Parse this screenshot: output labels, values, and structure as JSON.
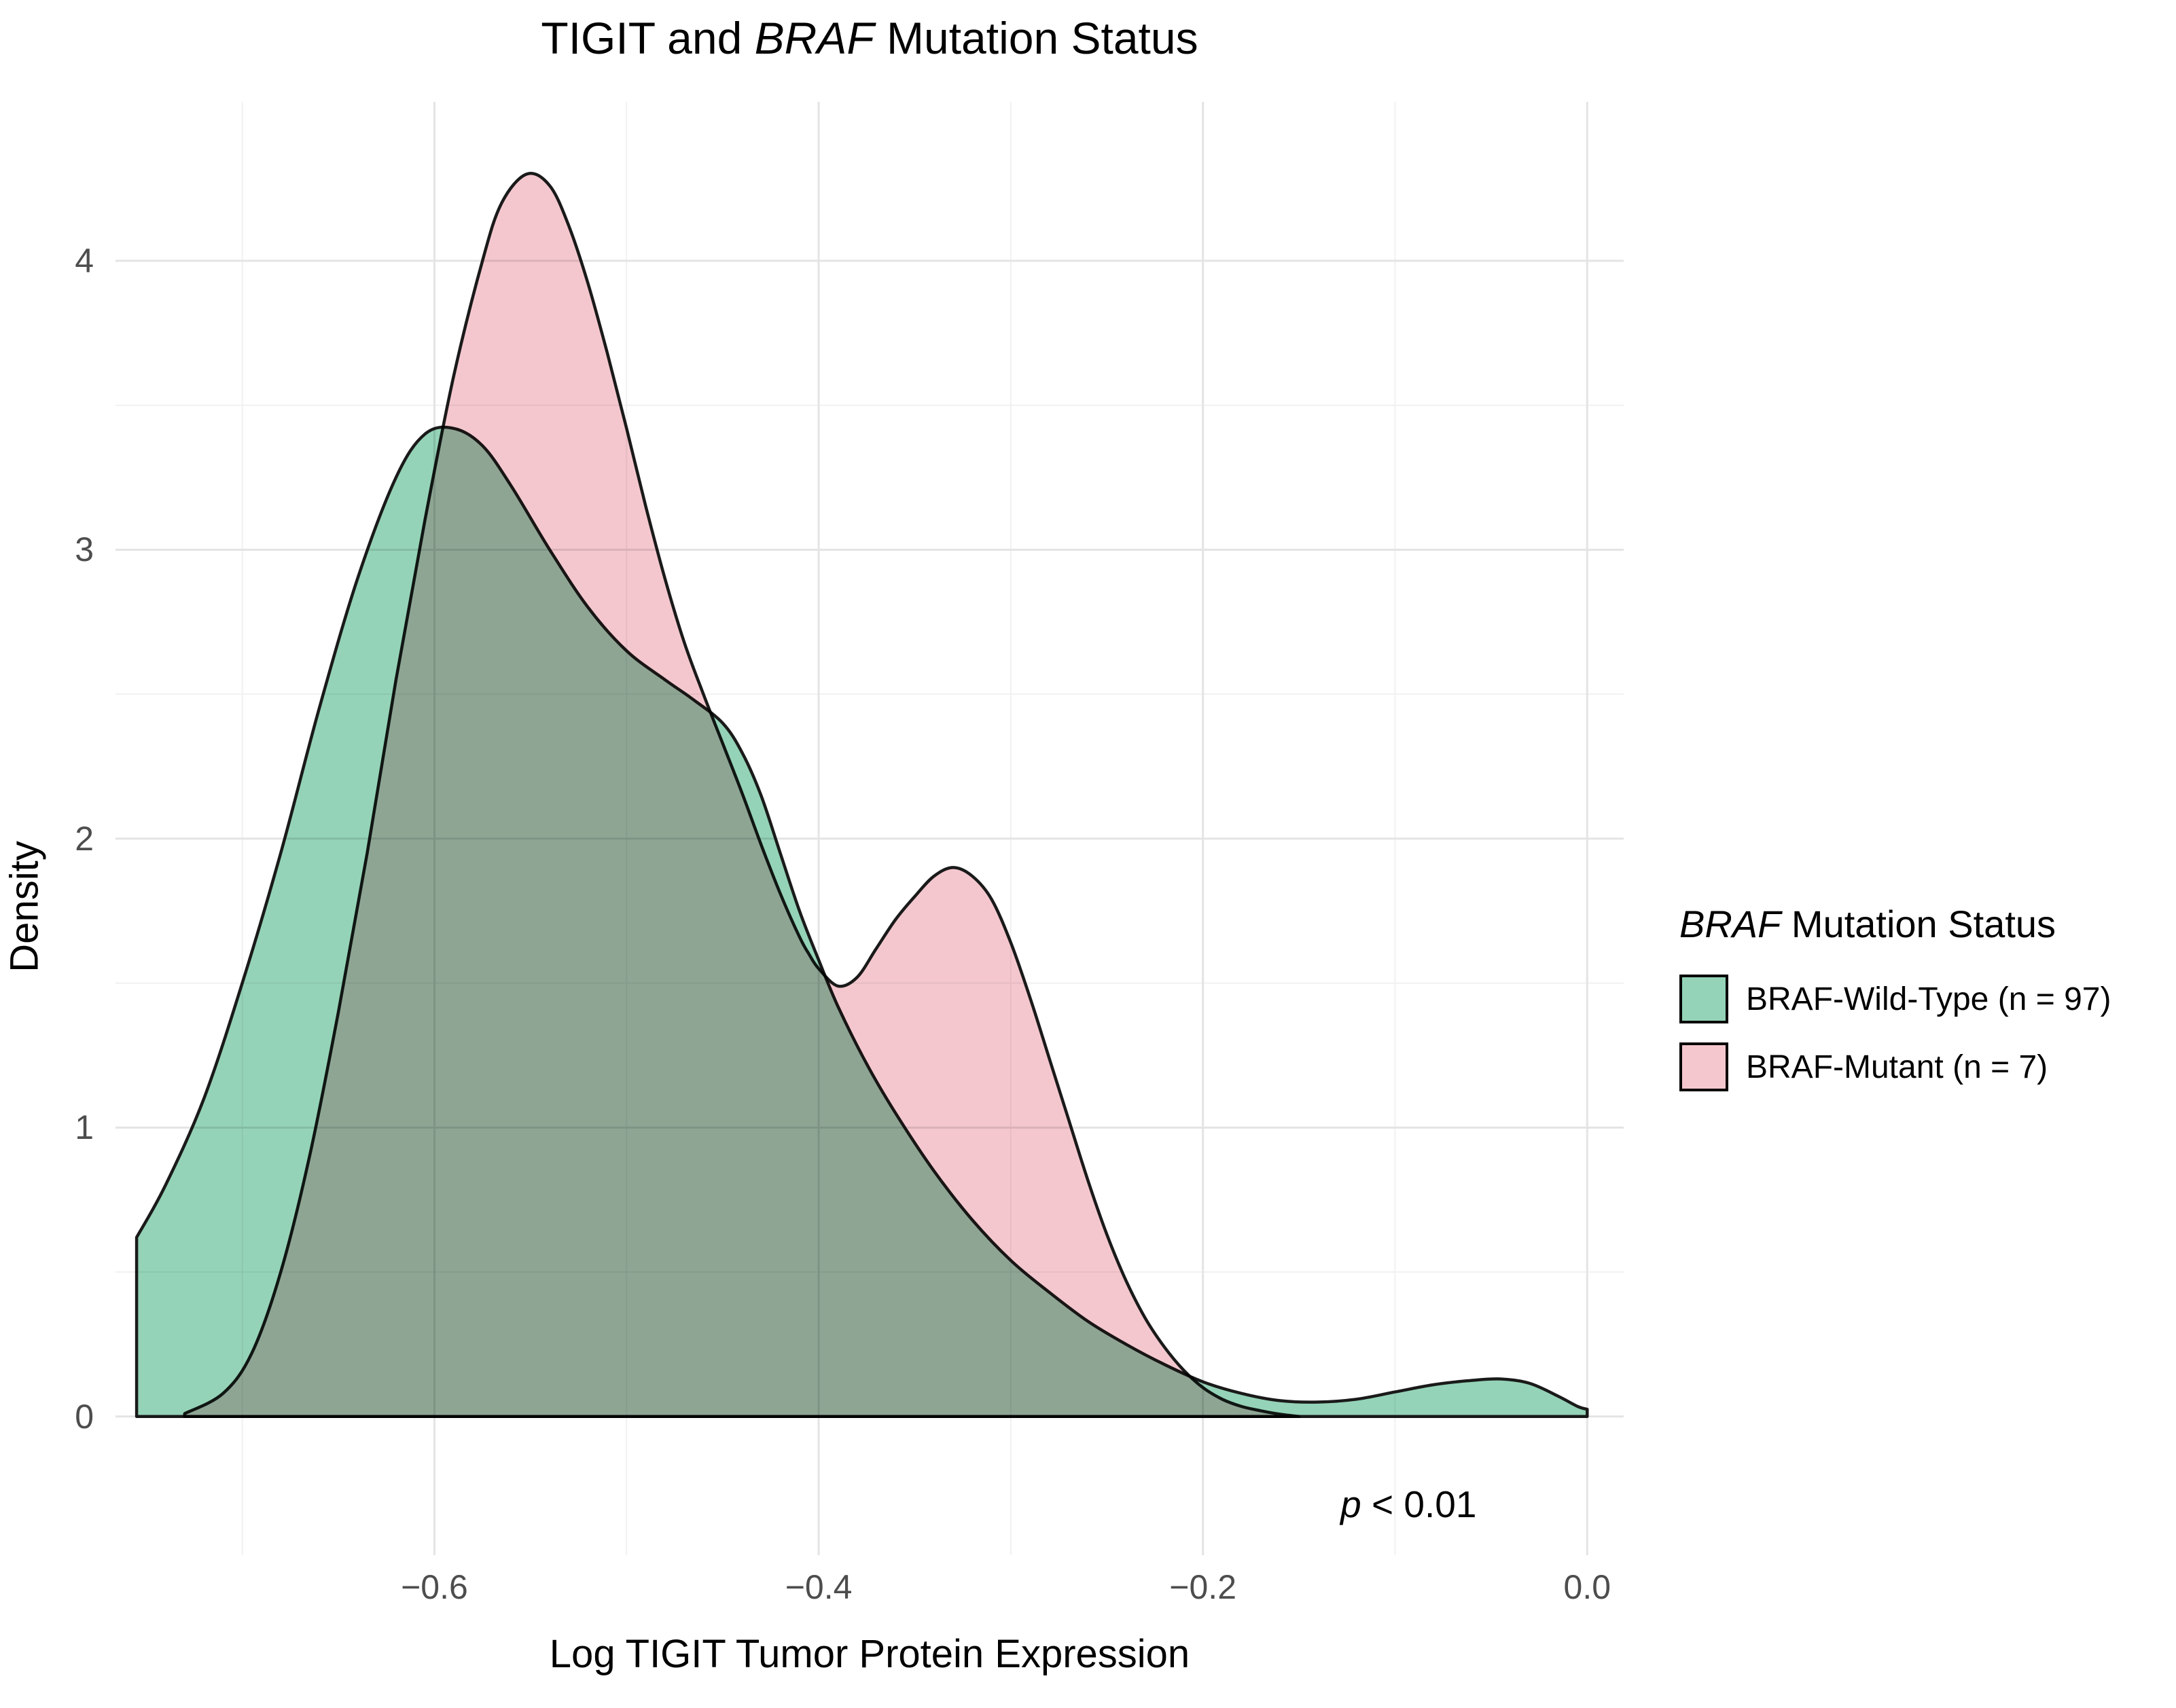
{
  "title": {
    "pre": "TIGIT and ",
    "italic": "BRAF",
    "post": " Mutation Status"
  },
  "axes": {
    "x_label": "Log TIGIT Tumor Protein Expression",
    "y_label": "Density"
  },
  "legend": {
    "title_italic": "BRAF",
    "title_rest": " Mutation Status"
  },
  "chart_data": {
    "type": "area",
    "subtype": "overlapping-density",
    "title": "TIGIT and BRAF Mutation Status",
    "xlabel": "Log TIGIT Tumor Protein Expression",
    "ylabel": "Density",
    "x_domain": [
      -0.766,
      0.019
    ],
    "y_domain": [
      -0.48,
      4.55
    ],
    "x_ticks": [
      {
        "value": -0.6,
        "label": "−0.6"
      },
      {
        "value": -0.4,
        "label": "−0.4"
      },
      {
        "value": -0.2,
        "label": "−0.2"
      },
      {
        "value": 0.0,
        "label": "0.0"
      }
    ],
    "x_minor": [
      -0.7,
      -0.5,
      -0.3,
      -0.1
    ],
    "y_ticks": [
      {
        "value": 0,
        "label": "0"
      },
      {
        "value": 1,
        "label": "1"
      },
      {
        "value": 2,
        "label": "2"
      },
      {
        "value": 3,
        "label": "3"
      },
      {
        "value": 4,
        "label": "4"
      }
    ],
    "y_minor": [
      0.5,
      1.5,
      2.5,
      3.5
    ],
    "grid": {
      "major_color": "#e4e4e4",
      "minor_color": "#f1f1f1"
    },
    "stroke_color": "#1a1a1a",
    "annotation": {
      "italic": "p",
      "rest": " < 0.01",
      "x": -0.093,
      "y": -0.304
    },
    "legend_position": "right",
    "series": [
      {
        "name": "BRAF-Wild-Type (n = 97)",
        "n": 97,
        "fill": "#94d3b7",
        "points": [
          [
            -0.755,
            0.62
          ],
          [
            -0.74,
            0.8
          ],
          [
            -0.72,
            1.1
          ],
          [
            -0.7,
            1.5
          ],
          [
            -0.68,
            1.95
          ],
          [
            -0.66,
            2.45
          ],
          [
            -0.64,
            2.9
          ],
          [
            -0.62,
            3.25
          ],
          [
            -0.605,
            3.4
          ],
          [
            -0.59,
            3.42
          ],
          [
            -0.575,
            3.36
          ],
          [
            -0.56,
            3.22
          ],
          [
            -0.54,
            3.0
          ],
          [
            -0.52,
            2.8
          ],
          [
            -0.5,
            2.65
          ],
          [
            -0.48,
            2.55
          ],
          [
            -0.465,
            2.48
          ],
          [
            -0.45,
            2.4
          ],
          [
            -0.44,
            2.3
          ],
          [
            -0.43,
            2.15
          ],
          [
            -0.42,
            1.95
          ],
          [
            -0.41,
            1.75
          ],
          [
            -0.4,
            1.58
          ],
          [
            -0.39,
            1.42
          ],
          [
            -0.375,
            1.22
          ],
          [
            -0.36,
            1.05
          ],
          [
            -0.34,
            0.85
          ],
          [
            -0.32,
            0.68
          ],
          [
            -0.3,
            0.54
          ],
          [
            -0.28,
            0.43
          ],
          [
            -0.26,
            0.33
          ],
          [
            -0.24,
            0.25
          ],
          [
            -0.22,
            0.18
          ],
          [
            -0.2,
            0.12
          ],
          [
            -0.18,
            0.08
          ],
          [
            -0.16,
            0.055
          ],
          [
            -0.14,
            0.05
          ],
          [
            -0.12,
            0.06
          ],
          [
            -0.1,
            0.085
          ],
          [
            -0.08,
            0.11
          ],
          [
            -0.06,
            0.125
          ],
          [
            -0.045,
            0.13
          ],
          [
            -0.03,
            0.115
          ],
          [
            -0.015,
            0.07
          ],
          [
            -0.005,
            0.035
          ],
          [
            0.0,
            0.025
          ]
        ]
      },
      {
        "name": "BRAF-Mutant (n = 7)",
        "n": 7,
        "fill": "#f4c7ce",
        "points": [
          [
            -0.73,
            0.01
          ],
          [
            -0.71,
            0.08
          ],
          [
            -0.695,
            0.22
          ],
          [
            -0.68,
            0.5
          ],
          [
            -0.665,
            0.9
          ],
          [
            -0.65,
            1.4
          ],
          [
            -0.635,
            1.95
          ],
          [
            -0.62,
            2.55
          ],
          [
            -0.605,
            3.1
          ],
          [
            -0.59,
            3.6
          ],
          [
            -0.575,
            4.0
          ],
          [
            -0.565,
            4.2
          ],
          [
            -0.552,
            4.3
          ],
          [
            -0.54,
            4.26
          ],
          [
            -0.53,
            4.12
          ],
          [
            -0.52,
            3.92
          ],
          [
            -0.51,
            3.68
          ],
          [
            -0.5,
            3.42
          ],
          [
            -0.49,
            3.15
          ],
          [
            -0.48,
            2.9
          ],
          [
            -0.47,
            2.68
          ],
          [
            -0.46,
            2.5
          ],
          [
            -0.45,
            2.33
          ],
          [
            -0.44,
            2.16
          ],
          [
            -0.43,
            1.98
          ],
          [
            -0.42,
            1.81
          ],
          [
            -0.41,
            1.66
          ],
          [
            -0.405,
            1.6
          ],
          [
            -0.4,
            1.55
          ],
          [
            -0.39,
            1.49
          ],
          [
            -0.38,
            1.52
          ],
          [
            -0.37,
            1.62
          ],
          [
            -0.36,
            1.72
          ],
          [
            -0.35,
            1.8
          ],
          [
            -0.34,
            1.87
          ],
          [
            -0.33,
            1.9
          ],
          [
            -0.32,
            1.87
          ],
          [
            -0.31,
            1.79
          ],
          [
            -0.3,
            1.64
          ],
          [
            -0.29,
            1.45
          ],
          [
            -0.28,
            1.24
          ],
          [
            -0.27,
            1.03
          ],
          [
            -0.26,
            0.82
          ],
          [
            -0.25,
            0.63
          ],
          [
            -0.24,
            0.47
          ],
          [
            -0.23,
            0.34
          ],
          [
            -0.22,
            0.24
          ],
          [
            -0.21,
            0.16
          ],
          [
            -0.2,
            0.1
          ],
          [
            -0.19,
            0.06
          ],
          [
            -0.18,
            0.035
          ],
          [
            -0.17,
            0.02
          ],
          [
            -0.16,
            0.008
          ],
          [
            -0.15,
            0.0
          ]
        ]
      }
    ]
  }
}
